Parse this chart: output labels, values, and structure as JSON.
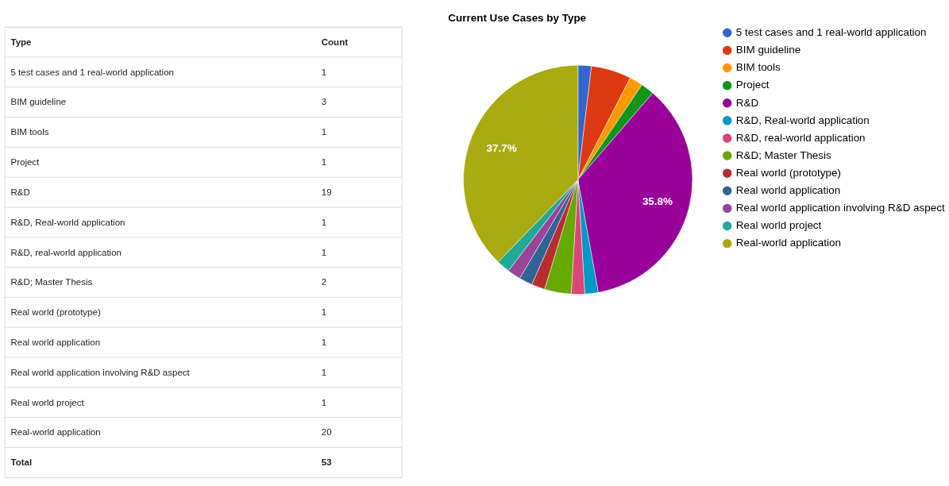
{
  "chart_data": [
    {
      "type": "other",
      "annotations": [
        "Type",
        "Count",
        "5 test cases and 1 real-world application",
        "1",
        "BIM guideline",
        "3",
        "BIM tools",
        "1",
        "Project",
        "1",
        "R&D",
        "19",
        "R&D, Real-world application",
        "1",
        "R&D, real-world application",
        "1",
        "R&D; Master Thesis",
        "2",
        "Real world (prototype)",
        "1",
        "Real world application",
        "1",
        "Real world application involving R&D aspect",
        "1",
        "Real world project",
        "1",
        "Real-world application",
        "20",
        "Total",
        "53"
      ]
    },
    {
      "type": "pie",
      "title": "Current Use Cases by Type",
      "categories": [
        "5 test cases and 1 real-world application",
        "BIM guideline",
        "BIM tools",
        "Project",
        "R&D",
        "R&D, Real-world application",
        "R&D, real-world application",
        "R&D; Master Thesis",
        "Real world (prototype)",
        "Real world application",
        "Real world application involving R&D aspect",
        "Real world project",
        "Real-world application"
      ],
      "values": [
        1.887,
        5.66,
        1.887,
        1.887,
        35.8,
        1.887,
        1.887,
        3.774,
        1.887,
        1.887,
        1.887,
        1.887,
        37.7
      ],
      "colors": [
        "#3366cc",
        "#dc3912",
        "#ff9900",
        "#109618",
        "#990099",
        "#0099c6",
        "#dd4477",
        "#66aa00",
        "#b82e2e",
        "#316395",
        "#994499",
        "#22aa99",
        "#aaaa11"
      ],
      "value_labels": [
        null,
        null,
        null,
        null,
        "35.8%",
        null,
        null,
        null,
        null,
        null,
        null,
        null,
        "37.7%"
      ],
      "legend": "right"
    }
  ]
}
